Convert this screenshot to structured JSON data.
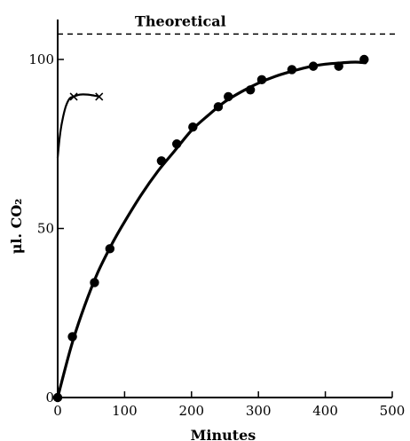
{
  "chart_data": {
    "type": "scatter",
    "xlabel": "Minutes",
    "ylabel": "μl. CO₂",
    "xlim": [
      0,
      500
    ],
    "ylim": [
      0,
      110
    ],
    "xticks": [
      0,
      100,
      200,
      300,
      400,
      500
    ],
    "xtick_labels": [
      "0",
      "100",
      "200",
      "300",
      "400",
      "500"
    ],
    "yticks": [
      0,
      50,
      100
    ],
    "ytick_labels": [
      "0",
      "50",
      "100"
    ],
    "grid": false,
    "legend": "none",
    "annotations": [
      {
        "text": "Theoretical",
        "value": 107.5
      }
    ],
    "series": [
      {
        "marker": "circle",
        "points": [
          {
            "x": 0,
            "y": 0
          },
          {
            "x": 22,
            "y": 18
          },
          {
            "x": 55,
            "y": 34
          },
          {
            "x": 78,
            "y": 44
          },
          {
            "x": 155,
            "y": 70
          },
          {
            "x": 178,
            "y": 75
          },
          {
            "x": 202,
            "y": 80
          },
          {
            "x": 240,
            "y": 86
          },
          {
            "x": 255,
            "y": 89
          },
          {
            "x": 288,
            "y": 91
          },
          {
            "x": 305,
            "y": 94
          },
          {
            "x": 350,
            "y": 97
          },
          {
            "x": 382,
            "y": 98
          },
          {
            "x": 420,
            "y": 98
          },
          {
            "x": 458,
            "y": 100
          }
        ],
        "curve": [
          [
            0,
            0
          ],
          [
            20,
            15
          ],
          [
            40,
            27
          ],
          [
            60,
            37
          ],
          [
            80,
            45
          ],
          [
            100,
            52
          ],
          [
            125,
            60
          ],
          [
            150,
            67
          ],
          [
            175,
            73
          ],
          [
            200,
            79
          ],
          [
            225,
            83.5
          ],
          [
            250,
            87.5
          ],
          [
            275,
            90.5
          ],
          [
            300,
            93
          ],
          [
            325,
            95
          ],
          [
            350,
            96.5
          ],
          [
            375,
            97.8
          ],
          [
            400,
            98.6
          ],
          [
            425,
            99
          ],
          [
            445,
            99.2
          ],
          [
            460,
            99
          ]
        ]
      },
      {
        "marker": "cross",
        "points": [
          {
            "x": 24,
            "y": 89
          },
          {
            "x": 62,
            "y": 89
          }
        ],
        "curve": [
          [
            0,
            71
          ],
          [
            3,
            77
          ],
          [
            7,
            82
          ],
          [
            12,
            86
          ],
          [
            18,
            88.5
          ],
          [
            24,
            89
          ],
          [
            33,
            89.6
          ],
          [
            45,
            89.6
          ],
          [
            55,
            89.3
          ],
          [
            62,
            89
          ]
        ]
      }
    ]
  }
}
